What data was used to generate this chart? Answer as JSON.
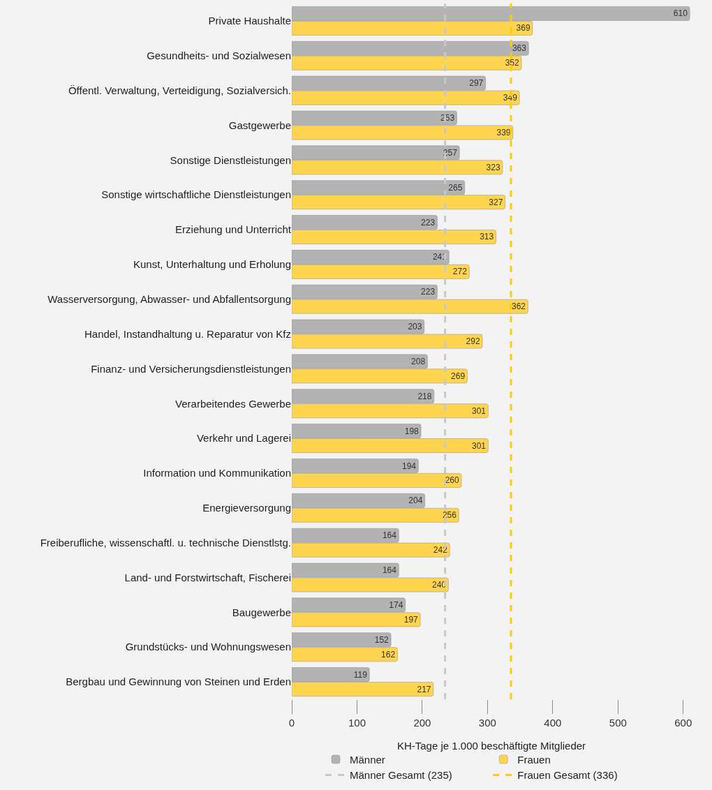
{
  "chart_data": {
    "type": "bar",
    "orientation": "horizontal",
    "xlabel": "KH-Tage je 1.000 beschäftigte Mitglieder",
    "categories": [
      "Private Haushalte",
      "Gesundheits- und Sozialwesen",
      "Öffentl. Verwaltung, Verteidigung, Sozialversich.",
      "Gastgewerbe",
      "Sonstige Dienstleistungen",
      "Sonstige wirtschaftliche Dienstleistungen",
      "Erziehung und Unterricht",
      "Kunst, Unterhaltung und Erholung",
      "Wasserversorgung, Abwasser- und Abfallentsorgung",
      "Handel, Instandhaltung u. Reparatur von Kfz",
      "Finanz- und Versicherungsdienstleistungen",
      "Verarbeitendes Gewerbe",
      "Verkehr und Lagerei",
      "Information und Kommunikation",
      "Energieversorgung",
      "Freiberufliche, wissenschaftl. u. technische Dienstlstg.",
      "Land- und Forstwirtschaft, Fischerei",
      "Baugewerbe",
      "Grundstücks- und Wohnungswesen",
      "Bergbau und Gewinnung von Steinen und Erden"
    ],
    "series": [
      {
        "name": "Männer",
        "color": "#b3b3b3",
        "values": [
          610,
          363,
          297,
          253,
          257,
          265,
          223,
          241,
          223,
          203,
          208,
          218,
          198,
          194,
          204,
          164,
          164,
          174,
          152,
          119
        ]
      },
      {
        "name": "Frauen",
        "color": "#ffd54f",
        "values": [
          369,
          352,
          349,
          339,
          323,
          327,
          313,
          272,
          362,
          292,
          269,
          301,
          301,
          260,
          256,
          242,
          240,
          197,
          162,
          217
        ]
      }
    ],
    "ref_lines": [
      {
        "axis": "x",
        "value": 235,
        "label": "Männer Gesamt (235)",
        "color": "#c8c8c8",
        "line_style": "dashed"
      },
      {
        "axis": "x",
        "value": 336,
        "label": "Frauen Gesamt (336)",
        "color": "#ffcc00",
        "line_style": "dashed"
      }
    ],
    "xlim": [
      0,
      612
    ],
    "xticks": [
      0,
      100,
      200,
      300,
      400,
      500,
      600
    ],
    "grid": false,
    "data_labels": true,
    "legend": "bottom"
  }
}
